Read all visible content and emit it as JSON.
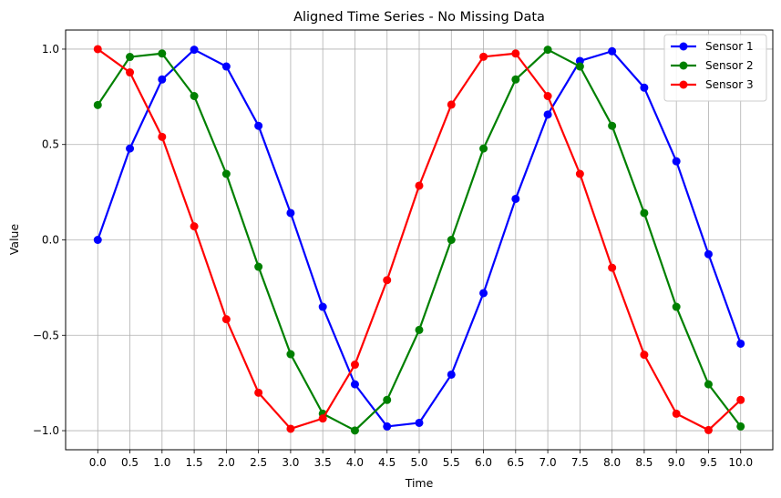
{
  "chart_data": {
    "type": "line",
    "title": "Aligned Time Series - No Missing Data",
    "xlabel": "Time",
    "ylabel": "Value",
    "xlim": [
      -0.5,
      10.5
    ],
    "ylim": [
      -1.1,
      1.1
    ],
    "xticks": [
      0.0,
      0.5,
      1.0,
      1.5,
      2.0,
      2.5,
      3.0,
      3.5,
      4.0,
      4.5,
      5.0,
      5.5,
      6.0,
      6.5,
      7.0,
      7.5,
      8.0,
      8.5,
      9.0,
      9.5,
      10.0
    ],
    "xtick_labels": [
      "0.0",
      "0.5",
      "1.0",
      "1.5",
      "2.0",
      "2.5",
      "3.0",
      "3.5",
      "4.0",
      "4.5",
      "5.0",
      "5.5",
      "6.0",
      "6.5",
      "7.0",
      "7.5",
      "8.0",
      "8.5",
      "9.0",
      "9.5",
      "10.0"
    ],
    "yticks": [
      -1.0,
      -0.5,
      0.0,
      0.5,
      1.0
    ],
    "ytick_labels": [
      "−1.0",
      "−0.5",
      "0.0",
      "0.5",
      "1.0"
    ],
    "grid": true,
    "legend_position": "top-right",
    "x": [
      0.0,
      0.5,
      1.0,
      1.5,
      2.0,
      2.5,
      3.0,
      3.5,
      4.0,
      4.5,
      5.0,
      5.5,
      6.0,
      6.5,
      7.0,
      7.5,
      8.0,
      8.5,
      9.0,
      9.5,
      10.0
    ],
    "series": [
      {
        "name": "Sensor 1",
        "color": "#0000ff",
        "values": [
          0.0,
          0.479,
          0.841,
          0.997,
          0.909,
          0.598,
          0.141,
          -0.351,
          -0.757,
          -0.978,
          -0.959,
          -0.706,
          -0.279,
          0.215,
          0.657,
          0.938,
          0.989,
          0.798,
          0.412,
          -0.075,
          -0.544
        ]
      },
      {
        "name": "Sensor 2",
        "color": "#008000",
        "values": [
          0.707,
          0.959,
          0.977,
          0.754,
          0.346,
          -0.141,
          -0.599,
          -0.911,
          -0.999,
          -0.839,
          -0.472,
          0.0,
          0.479,
          0.841,
          0.997,
          0.909,
          0.598,
          0.141,
          -0.351,
          -0.757,
          -0.978
        ]
      },
      {
        "name": "Sensor 3",
        "color": "#ff0000",
        "values": [
          1.0,
          0.878,
          0.54,
          0.071,
          -0.416,
          -0.801,
          -0.99,
          -0.936,
          -0.654,
          -0.211,
          0.284,
          0.709,
          0.96,
          0.977,
          0.754,
          0.346,
          -0.146,
          -0.602,
          -0.911,
          -0.997,
          -0.839
        ]
      }
    ]
  }
}
